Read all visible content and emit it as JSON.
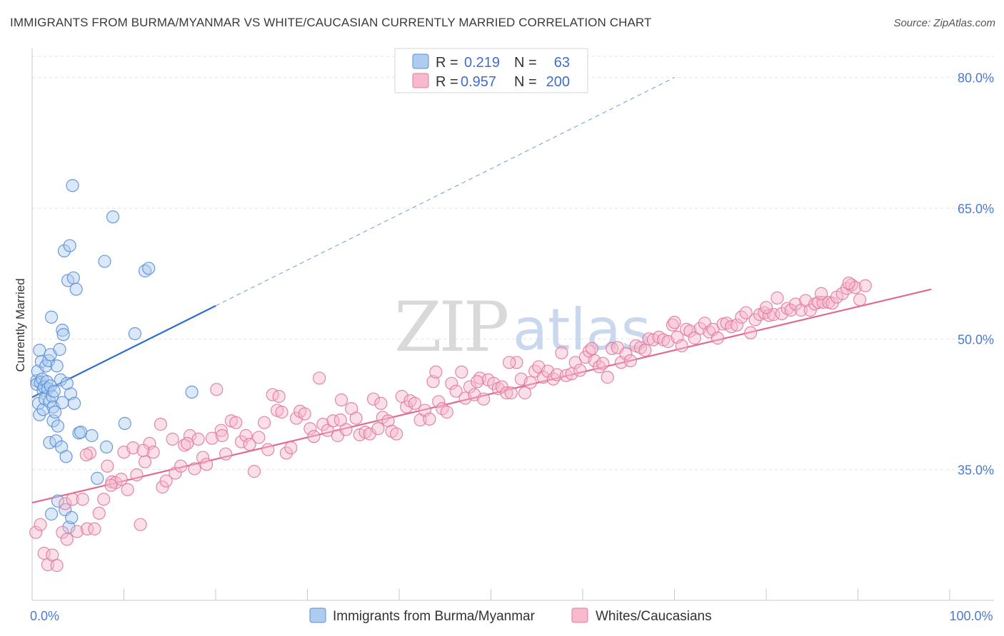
{
  "header": {
    "title": "IMMIGRANTS FROM BURMA/MYANMAR VS WHITE/CAUCASIAN CURRENTLY MARRIED CORRELATION CHART",
    "source": "Source: ZipAtlas.com"
  },
  "watermark": {
    "zip": "ZIP",
    "atlas": "atlas"
  },
  "legend_box": {
    "rows": [
      {
        "r_label": "R =",
        "r_value": "0.219",
        "n_label": "N =",
        "n_value": "63",
        "color": "#aecbf0",
        "stroke": "#5b8fd6"
      },
      {
        "r_label": "R =",
        "r_value": "0.957",
        "n_label": "N =",
        "n_value": "200",
        "color": "#f7b9cc",
        "stroke": "#e07a9c"
      }
    ]
  },
  "bottom_legend": [
    {
      "label": "Immigrants from Burma/Myanmar",
      "color": "#aecbf0",
      "stroke": "#5b8fd6"
    },
    {
      "label": "Whites/Caucasians",
      "color": "#f7b9cc",
      "stroke": "#e07a9c"
    }
  ],
  "chart_data": {
    "type": "scatter",
    "title": "IMMIGRANTS FROM BURMA/MYANMAR VS WHITE/CAUCASIAN CURRENTLY MARRIED CORRELATION CHART",
    "xlabel": "",
    "ylabel": "Currently Married",
    "xlim": [
      0,
      100
    ],
    "ylim": [
      20,
      83
    ],
    "x_ticks": [
      {
        "value": 0,
        "label": "0.0%"
      },
      {
        "value": 100,
        "label": "100.0%"
      }
    ],
    "y_ticks": [
      {
        "value": 35,
        "label": "35.0%"
      },
      {
        "value": 50,
        "label": "50.0%"
      },
      {
        "value": 65,
        "label": "65.0%"
      },
      {
        "value": 80,
        "label": "80.0%"
      }
    ],
    "grid": true,
    "series": [
      {
        "name": "Immigrants from Burma/Myanmar",
        "color": "#aecbf0",
        "stroke": "#5b8fd6",
        "trend": {
          "x0": 0,
          "y0": 43.3,
          "x1": 20,
          "y1": 53.8,
          "color": "#2e6fd1",
          "dash_to_x": 70,
          "dash_to_y": 80
        },
        "points": [
          [
            0.5,
            45.2
          ],
          [
            0.5,
            44.8
          ],
          [
            0.6,
            46.3
          ],
          [
            0.7,
            42.6
          ],
          [
            0.8,
            41.3
          ],
          [
            0.8,
            48.7
          ],
          [
            0.9,
            45.0
          ],
          [
            1.0,
            47.4
          ],
          [
            1.1,
            45.4
          ],
          [
            1.2,
            44.1
          ],
          [
            1.2,
            41.9
          ],
          [
            1.3,
            44.5
          ],
          [
            1.4,
            43.1
          ],
          [
            1.5,
            46.9
          ],
          [
            1.6,
            45.1
          ],
          [
            1.7,
            44.3
          ],
          [
            1.8,
            47.5
          ],
          [
            1.9,
            42.8
          ],
          [
            1.9,
            38.1
          ],
          [
            2.0,
            44.6
          ],
          [
            2.0,
            48.2
          ],
          [
            2.1,
            52.5
          ],
          [
            2.1,
            29.9
          ],
          [
            2.2,
            43.4
          ],
          [
            2.3,
            40.6
          ],
          [
            2.3,
            42.2
          ],
          [
            2.4,
            44.0
          ],
          [
            2.5,
            41.6
          ],
          [
            2.6,
            38.3
          ],
          [
            2.7,
            46.9
          ],
          [
            2.8,
            31.4
          ],
          [
            2.8,
            40.0
          ],
          [
            3.0,
            48.8
          ],
          [
            3.1,
            45.3
          ],
          [
            3.2,
            37.6
          ],
          [
            3.3,
            42.7
          ],
          [
            3.3,
            51.0
          ],
          [
            3.4,
            50.5
          ],
          [
            3.5,
            60.1
          ],
          [
            3.6,
            30.4
          ],
          [
            3.7,
            36.5
          ],
          [
            3.9,
            56.7
          ],
          [
            4.0,
            28.4
          ],
          [
            4.1,
            60.7
          ],
          [
            4.2,
            43.7
          ],
          [
            4.4,
            67.6
          ],
          [
            4.5,
            57.0
          ],
          [
            4.6,
            42.6
          ],
          [
            4.8,
            55.7
          ],
          [
            5.1,
            39.2
          ],
          [
            5.3,
            39.3
          ],
          [
            6.5,
            38.9
          ],
          [
            7.1,
            34.0
          ],
          [
            7.9,
            58.9
          ],
          [
            8.1,
            37.6
          ],
          [
            8.8,
            64.0
          ],
          [
            10.1,
            40.3
          ],
          [
            11.2,
            50.6
          ],
          [
            12.3,
            57.8
          ],
          [
            12.7,
            58.1
          ],
          [
            17.4,
            43.9
          ],
          [
            4.3,
            29.5
          ],
          [
            3.8,
            44.9
          ]
        ]
      },
      {
        "name": "Whites/Caucasians",
        "color": "#f7b9cc",
        "stroke": "#e07a9c",
        "trend": {
          "x0": 0,
          "y0": 31.2,
          "x1": 98,
          "y1": 55.7,
          "color": "#e06a93"
        },
        "points": [
          [
            0.4,
            27.8
          ],
          [
            0.9,
            28.7
          ],
          [
            1.3,
            25.4
          ],
          [
            1.7,
            24.1
          ],
          [
            2.2,
            25.2
          ],
          [
            2.7,
            24.0
          ],
          [
            3.3,
            27.8
          ],
          [
            3.6,
            31.1
          ],
          [
            3.8,
            27.0
          ],
          [
            4.4,
            31.6
          ],
          [
            4.9,
            27.9
          ],
          [
            5.5,
            31.6
          ],
          [
            6.0,
            28.2
          ],
          [
            6.3,
            36.9
          ],
          [
            6.8,
            28.2
          ],
          [
            7.3,
            30.0
          ],
          [
            7.8,
            31.6
          ],
          [
            8.2,
            35.4
          ],
          [
            8.7,
            33.6
          ],
          [
            9.1,
            33.5
          ],
          [
            9.7,
            33.9
          ],
          [
            10.0,
            37.0
          ],
          [
            10.4,
            32.7
          ],
          [
            11.0,
            37.5
          ],
          [
            11.4,
            34.4
          ],
          [
            11.8,
            28.7
          ],
          [
            12.3,
            35.9
          ],
          [
            12.8,
            38.0
          ],
          [
            13.2,
            37.0
          ],
          [
            14.0,
            40.2
          ],
          [
            14.2,
            33.0
          ],
          [
            14.6,
            33.7
          ],
          [
            15.3,
            38.5
          ],
          [
            15.6,
            34.6
          ],
          [
            16.2,
            35.4
          ],
          [
            16.6,
            37.8
          ],
          [
            17.2,
            38.9
          ],
          [
            17.7,
            35.1
          ],
          [
            18.1,
            38.5
          ],
          [
            18.6,
            36.4
          ],
          [
            19.0,
            35.6
          ],
          [
            19.6,
            38.6
          ],
          [
            20.1,
            44.2
          ],
          [
            20.6,
            39.5
          ],
          [
            21.1,
            36.8
          ],
          [
            21.7,
            40.6
          ],
          [
            22.2,
            40.4
          ],
          [
            22.8,
            38.2
          ],
          [
            23.3,
            38.9
          ],
          [
            23.7,
            37.9
          ],
          [
            24.2,
            34.8
          ],
          [
            24.7,
            38.7
          ],
          [
            25.3,
            40.4
          ],
          [
            25.7,
            37.3
          ],
          [
            26.2,
            43.6
          ],
          [
            26.7,
            41.8
          ],
          [
            27.2,
            41.6
          ],
          [
            27.7,
            36.9
          ],
          [
            28.2,
            37.5
          ],
          [
            28.8,
            40.9
          ],
          [
            29.2,
            41.7
          ],
          [
            29.7,
            41.4
          ],
          [
            30.3,
            39.7
          ],
          [
            30.7,
            38.8
          ],
          [
            31.3,
            45.5
          ],
          [
            31.7,
            40.2
          ],
          [
            32.2,
            39.5
          ],
          [
            32.8,
            40.6
          ],
          [
            33.3,
            38.9
          ],
          [
            33.7,
            43.0
          ],
          [
            34.2,
            39.6
          ],
          [
            34.8,
            42.0
          ],
          [
            35.3,
            40.9
          ],
          [
            35.7,
            39.0
          ],
          [
            36.3,
            39.3
          ],
          [
            36.8,
            39.1
          ],
          [
            37.2,
            43.1
          ],
          [
            37.7,
            39.7
          ],
          [
            38.2,
            41.0
          ],
          [
            38.8,
            40.6
          ],
          [
            39.2,
            39.4
          ],
          [
            39.7,
            39.1
          ],
          [
            40.3,
            43.4
          ],
          [
            40.8,
            42.2
          ],
          [
            41.2,
            42.9
          ],
          [
            41.7,
            42.6
          ],
          [
            42.3,
            40.7
          ],
          [
            42.8,
            41.8
          ],
          [
            43.3,
            40.8
          ],
          [
            43.7,
            45.1
          ],
          [
            44.3,
            42.8
          ],
          [
            44.7,
            42.0
          ],
          [
            45.2,
            41.6
          ],
          [
            45.7,
            44.9
          ],
          [
            46.2,
            44.0
          ],
          [
            46.8,
            46.2
          ],
          [
            47.2,
            43.2
          ],
          [
            47.7,
            44.5
          ],
          [
            48.2,
            43.6
          ],
          [
            48.8,
            45.5
          ],
          [
            49.2,
            43.1
          ],
          [
            49.7,
            45.3
          ],
          [
            50.3,
            44.9
          ],
          [
            50.8,
            44.3
          ],
          [
            51.2,
            44.5
          ],
          [
            51.7,
            43.8
          ],
          [
            52.2,
            43.8
          ],
          [
            52.8,
            47.3
          ],
          [
            53.3,
            45.4
          ],
          [
            53.7,
            43.8
          ],
          [
            54.3,
            45.0
          ],
          [
            54.8,
            46.3
          ],
          [
            55.2,
            46.8
          ],
          [
            55.7,
            45.6
          ],
          [
            56.2,
            46.3
          ],
          [
            56.8,
            45.4
          ],
          [
            57.2,
            45.9
          ],
          [
            57.7,
            48.4
          ],
          [
            58.2,
            45.8
          ],
          [
            58.8,
            46.0
          ],
          [
            59.2,
            47.3
          ],
          [
            59.7,
            46.4
          ],
          [
            60.3,
            47.9
          ],
          [
            60.7,
            48.6
          ],
          [
            61.3,
            47.5
          ],
          [
            61.8,
            46.8
          ],
          [
            62.2,
            47.2
          ],
          [
            62.7,
            45.6
          ],
          [
            63.2,
            48.9
          ],
          [
            63.8,
            49.0
          ],
          [
            64.2,
            47.3
          ],
          [
            64.7,
            48.3
          ],
          [
            65.2,
            47.5
          ],
          [
            65.8,
            49.2
          ],
          [
            66.3,
            49.0
          ],
          [
            66.8,
            48.7
          ],
          [
            67.2,
            50.0
          ],
          [
            67.7,
            49.9
          ],
          [
            68.3,
            50.2
          ],
          [
            68.8,
            49.9
          ],
          [
            69.3,
            49.7
          ],
          [
            69.8,
            51.6
          ],
          [
            70.3,
            50.2
          ],
          [
            70.8,
            49.2
          ],
          [
            71.3,
            51.1
          ],
          [
            71.7,
            50.9
          ],
          [
            72.2,
            50.1
          ],
          [
            72.8,
            51.2
          ],
          [
            73.3,
            51.8
          ],
          [
            73.8,
            50.8
          ],
          [
            74.2,
            51.1
          ],
          [
            74.7,
            50.1
          ],
          [
            75.3,
            51.7
          ],
          [
            75.7,
            51.8
          ],
          [
            76.2,
            51.4
          ],
          [
            76.8,
            51.6
          ],
          [
            77.3,
            52.5
          ],
          [
            77.8,
            53.0
          ],
          [
            78.3,
            50.7
          ],
          [
            78.8,
            52.2
          ],
          [
            79.3,
            52.8
          ],
          [
            79.8,
            53.0
          ],
          [
            80.3,
            52.7
          ],
          [
            80.8,
            52.8
          ],
          [
            81.2,
            54.7
          ],
          [
            81.7,
            52.9
          ],
          [
            82.3,
            53.5
          ],
          [
            82.7,
            53.3
          ],
          [
            83.2,
            54.0
          ],
          [
            83.8,
            53.3
          ],
          [
            84.3,
            54.4
          ],
          [
            84.8,
            53.3
          ],
          [
            85.3,
            54.0
          ],
          [
            85.7,
            54.2
          ],
          [
            86.2,
            54.2
          ],
          [
            86.8,
            54.2
          ],
          [
            87.2,
            54.1
          ],
          [
            87.7,
            54.8
          ],
          [
            88.3,
            55.2
          ],
          [
            88.8,
            55.8
          ],
          [
            89.3,
            56.2
          ],
          [
            89.7,
            55.9
          ],
          [
            90.2,
            54.5
          ],
          [
            90.8,
            56.1
          ],
          [
            38.0,
            42.6
          ],
          [
            44.0,
            46.2
          ],
          [
            52.0,
            47.3
          ],
          [
            61.0,
            48.9
          ],
          [
            70.0,
            51.9
          ],
          [
            80.0,
            53.6
          ],
          [
            86.0,
            55.2
          ],
          [
            89.0,
            56.4
          ],
          [
            20.7,
            38.9
          ],
          [
            16.9,
            38.0
          ],
          [
            12.1,
            37.2
          ],
          [
            8.6,
            33.2
          ],
          [
            5.9,
            36.7
          ],
          [
            26.9,
            43.4
          ],
          [
            33.6,
            40.7
          ],
          [
            48.5,
            45.1
          ]
        ]
      }
    ]
  }
}
